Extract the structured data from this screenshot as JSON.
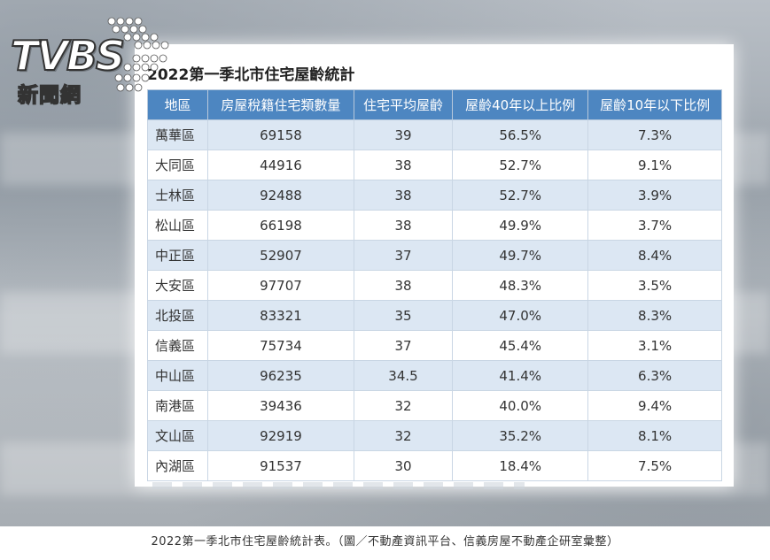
{
  "logo": {
    "word": "TVBS",
    "sub": "新聞網"
  },
  "table_title": "2022第一季北市住宅屋齡統計",
  "columns": [
    "地區",
    "房屋稅籍住宅類數量",
    "住宅平均屋齡",
    "屋齡40年以上比例",
    "屋齡10年以下比例"
  ],
  "rows": [
    [
      "萬華區",
      "69158",
      "39",
      "56.5%",
      "7.3%"
    ],
    [
      "大同區",
      "44916",
      "38",
      "52.7%",
      "9.1%"
    ],
    [
      "士林區",
      "92488",
      "38",
      "52.7%",
      "3.9%"
    ],
    [
      "松山區",
      "66198",
      "38",
      "49.9%",
      "3.7%"
    ],
    [
      "中正區",
      "52907",
      "37",
      "49.7%",
      "8.4%"
    ],
    [
      "大安區",
      "97707",
      "38",
      "48.3%",
      "3.5%"
    ],
    [
      "北投區",
      "83321",
      "35",
      "47.0%",
      "8.3%"
    ],
    [
      "信義區",
      "75734",
      "37",
      "45.4%",
      "3.1%"
    ],
    [
      "中山區",
      "96235",
      "34.5",
      "41.4%",
      "6.3%"
    ],
    [
      "南港區",
      "39436",
      "32",
      "40.0%",
      "9.4%"
    ],
    [
      "文山區",
      "92919",
      "32",
      "35.2%",
      "8.1%"
    ],
    [
      "內湖區",
      "91537",
      "30",
      "18.4%",
      "7.5%"
    ]
  ],
  "caption": "2022第一季北市住宅屋齡統計表。（圖／不動產資訊平台、信義房屋不動產企研室彙整）"
}
